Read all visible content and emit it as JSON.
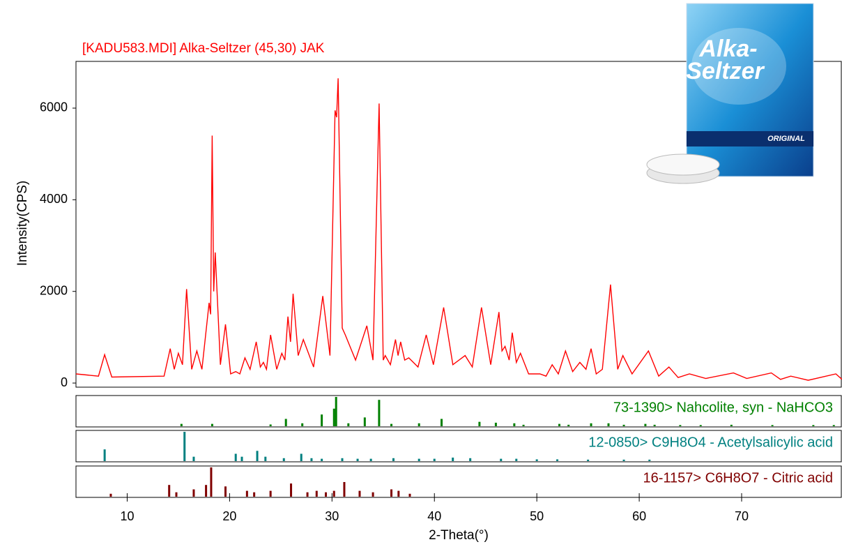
{
  "chart_data": {
    "type": "line",
    "title": "[KADU583.MDI] Alka-Seltzer (45,30) JAK",
    "xlabel": "2-Theta(°)",
    "ylabel": "Intensity(CPS)",
    "color": "#ff0000",
    "x": [
      5,
      7.2,
      7.8,
      8.5,
      13.6,
      14.2,
      14.6,
      15.0,
      15.4,
      15.8,
      16.3,
      16.8,
      17.3,
      18.0,
      18.15,
      18.3,
      18.45,
      18.6,
      19.1,
      19.6,
      20.1,
      20.6,
      21.0,
      21.5,
      22.0,
      22.6,
      23.0,
      23.3,
      23.6,
      24.0,
      24.6,
      25.1,
      25.4,
      25.7,
      25.95,
      26.2,
      26.7,
      27.2,
      28.2,
      29.1,
      29.8,
      30.3,
      30.45,
      30.6,
      31.0,
      31.3,
      32.3,
      33.4,
      34.0,
      34.6,
      35.0,
      35.2,
      35.7,
      36.2,
      36.45,
      36.7,
      37.1,
      37.5,
      38.4,
      39.2,
      39.9,
      40.9,
      41.8,
      43.0,
      43.7,
      44.6,
      45.5,
      46.3,
      46.6,
      46.9,
      47.3,
      47.6,
      48.0,
      48.4,
      49.2,
      50.3,
      50.9,
      51.5,
      52.1,
      52.8,
      53.5,
      54.2,
      54.8,
      55.3,
      55.8,
      56.4,
      57.2,
      57.9,
      58.4,
      59.3,
      60.9,
      61.9,
      62.9,
      63.8,
      64.9,
      66.5,
      69.2,
      70.5,
      72.9,
      73.8,
      74.8,
      76.5,
      79.2,
      79.8
    ],
    "values": [
      200,
      150,
      620,
      130,
      150,
      750,
      300,
      650,
      400,
      2050,
      300,
      700,
      300,
      1750,
      1500,
      5400,
      2000,
      2850,
      400,
      1280,
      200,
      250,
      200,
      550,
      300,
      900,
      350,
      450,
      300,
      1050,
      300,
      650,
      500,
      1450,
      900,
      1950,
      600,
      950,
      350,
      1900,
      600,
      5950,
      5800,
      6650,
      1200,
      1050,
      500,
      1250,
      500,
      6100,
      500,
      600,
      400,
      950,
      600,
      900,
      500,
      550,
      350,
      1050,
      400,
      1650,
      400,
      600,
      350,
      1650,
      400,
      1550,
      700,
      800,
      500,
      1100,
      450,
      650,
      200,
      200,
      150,
      400,
      200,
      700,
      250,
      450,
      300,
      750,
      200,
      300,
      2150,
      300,
      600,
      200,
      700,
      150,
      350,
      120,
      200,
      100,
      220,
      100,
      220,
      80,
      150,
      60,
      200,
      80
    ],
    "xlim": [
      5,
      79.8
    ],
    "ylim": [
      -90,
      7020
    ],
    "xticks": [
      10,
      20,
      30,
      40,
      50,
      60,
      70
    ],
    "yticks": [
      0,
      2000,
      4000,
      6000
    ],
    "reference_patterns": [
      {
        "label": "73-1390> Nahcolite, syn - NaHCO3",
        "color": "#008000",
        "positions": [
          15.3,
          18.3,
          24.0,
          25.5,
          27.1,
          29.0,
          30.2,
          30.4,
          31.6,
          33.2,
          34.6,
          35.8,
          38.5,
          40.7,
          44.4,
          46.0,
          47.8,
          48.7,
          52.2,
          53.1,
          55.3,
          57.0,
          58.5,
          60.6,
          61.5,
          64,
          66,
          69,
          73,
          77,
          79
        ],
        "intensities": [
          8,
          8,
          6,
          25,
          10,
          40,
          60,
          100,
          10,
          30,
          90,
          8,
          10,
          25,
          15,
          12,
          10,
          5,
          8,
          5,
          10,
          10,
          5,
          8,
          5,
          4,
          4,
          5,
          4,
          4,
          4
        ]
      },
      {
        "label": "12-0850> C9H8O4 - Acetylsalicylic acid",
        "color": "#008080",
        "positions": [
          7.8,
          15.6,
          16.5,
          20.6,
          21.2,
          22.7,
          23.5,
          25.3,
          27.0,
          28.0,
          29.0,
          31.0,
          32.5,
          33.8,
          36.0,
          38.5,
          40.0,
          41.8,
          43.5,
          46.5,
          48.0,
          50.0,
          52.0,
          55.0,
          58.5,
          61.0
        ],
        "intensities": [
          40,
          100,
          15,
          25,
          15,
          35,
          15,
          10,
          25,
          10,
          8,
          10,
          8,
          8,
          10,
          8,
          8,
          12,
          10,
          8,
          8,
          6,
          6,
          5,
          5,
          5
        ]
      },
      {
        "label": "16-1157> C6H8O7 - Citric acid",
        "color": "#800000",
        "positions": [
          8.4,
          14.1,
          14.8,
          16.5,
          17.7,
          18.2,
          19.6,
          21.7,
          22.4,
          24.0,
          26.0,
          27.6,
          28.5,
          29.4,
          30.2,
          31.2,
          32.7,
          34.0,
          35.8,
          36.5,
          37.6
        ],
        "intensities": [
          10,
          40,
          15,
          25,
          40,
          100,
          35,
          20,
          15,
          20,
          45,
          15,
          20,
          15,
          20,
          50,
          20,
          15,
          25,
          20,
          10
        ]
      }
    ]
  },
  "image": {
    "brand_line1": "Alka-",
    "brand_line2": "Seltzer",
    "badge": "ORIGINAL"
  }
}
